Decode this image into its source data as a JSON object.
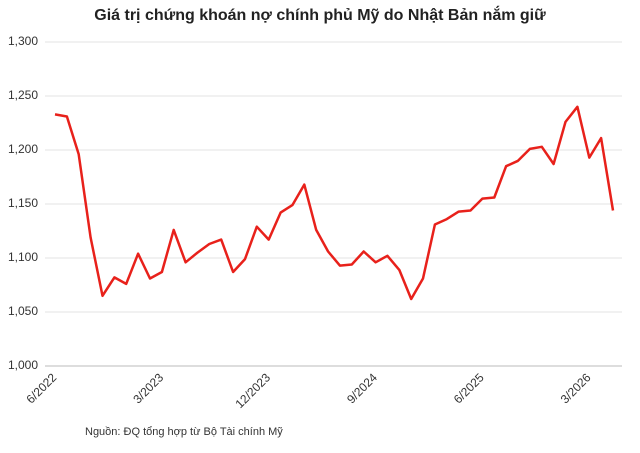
{
  "chart_data": {
    "type": "line",
    "title": "Giá trị chứng khoán nợ chính phủ Mỹ do Nhật Bản nắm giữ",
    "source": "Nguồn: ĐQ tổng hợp từ Bộ Tài chính Mỹ",
    "categories": [
      "6/2022",
      null,
      null,
      null,
      null,
      null,
      null,
      null,
      null,
      "3/2023",
      null,
      null,
      null,
      null,
      null,
      null,
      null,
      null,
      "12/2023",
      null,
      null,
      null,
      null,
      null,
      null,
      null,
      null,
      "9/2024",
      null,
      null,
      null,
      null,
      null,
      null,
      null,
      null,
      "6/2025",
      null,
      null,
      null,
      null,
      null,
      null,
      null,
      null,
      "3/2026",
      null,
      null
    ],
    "series": [
      {
        "color": "#e8211b",
        "values": [
          1233,
          1231,
          1196,
          1119,
          1065,
          1082,
          1076,
          1104,
          1081,
          1087,
          1126,
          1096,
          1105,
          1113,
          1117,
          1087,
          1099,
          1129,
          1117,
          1142,
          1149,
          1168,
          1126,
          1106,
          1093,
          1094,
          1106,
          1096,
          1102,
          1089,
          1062,
          1081,
          1131,
          1136,
          1143,
          1144,
          1155,
          1156,
          1185,
          1190,
          1201,
          1203,
          1187,
          1226,
          1240,
          1193,
          1211,
          1144
        ]
      }
    ],
    "ylim": [
      1000,
      1300
    ],
    "yticks": [
      {
        "value": 1000,
        "label": "1,000"
      },
      {
        "value": 1050,
        "label": "1,050"
      },
      {
        "value": 1100,
        "label": "1,100"
      },
      {
        "value": 1150,
        "label": "1,150"
      },
      {
        "value": 1200,
        "label": "1,200"
      },
      {
        "value": 1250,
        "label": "1,250"
      },
      {
        "value": 1300,
        "label": "1,300"
      }
    ],
    "grid": true
  }
}
